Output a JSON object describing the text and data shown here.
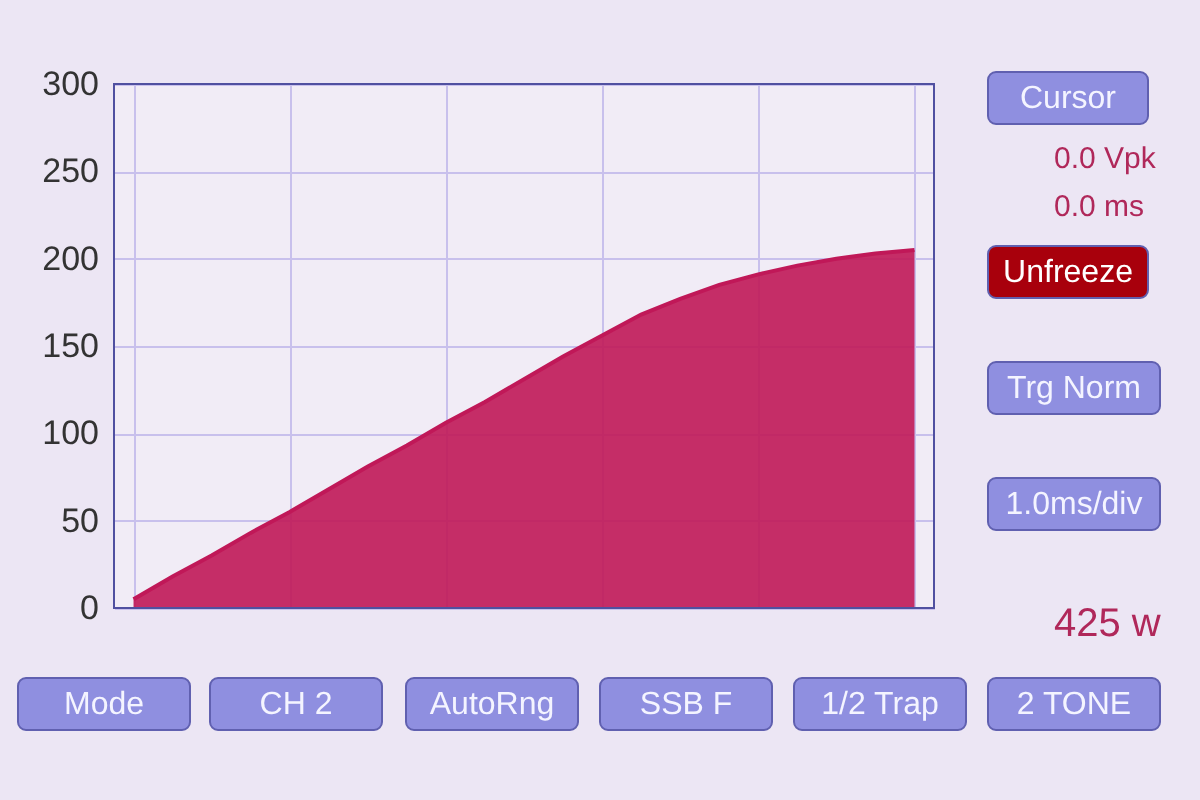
{
  "chart_data": {
    "type": "area",
    "categories": [
      null,
      null,
      null,
      null,
      null,
      null,
      null,
      null,
      null,
      null,
      null,
      null,
      null,
      null,
      null,
      null,
      null,
      null,
      null,
      null,
      null
    ],
    "series": [
      {
        "color": "#c01858",
        "values": [
          5,
          18,
          30,
          43,
          55,
          68,
          81,
          93,
          106,
          118,
          131,
          144,
          156,
          168,
          177,
          185,
          191,
          196,
          200,
          203,
          205
        ]
      }
    ],
    "ylim": [
      0,
      300
    ],
    "yticks": [
      0,
      50,
      100,
      150,
      200,
      250,
      300
    ],
    "grid": true,
    "tick_labels": "y",
    "annotations": [
      "Cursor",
      "0.0 Vpk",
      "0.0 ms",
      "Unfreeze",
      "Trg Norm",
      "1.0ms/div",
      "425 w",
      "Mode",
      "CH 2",
      "AutoRng",
      "SSB F",
      "1/2 Trap",
      "2 TONE"
    ]
  }
}
